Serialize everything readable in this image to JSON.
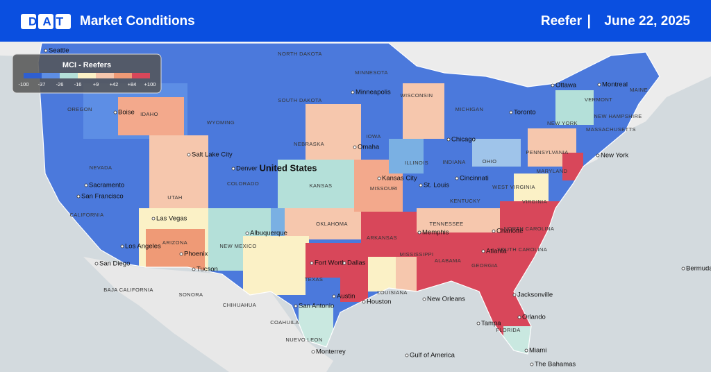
{
  "header": {
    "logo": "DAT",
    "title": "Market Conditions",
    "equipment": "Reefer",
    "date": "June 22, 2025"
  },
  "legend": {
    "title": "MCI - Reefers",
    "labels": [
      "-100",
      "-37",
      "-26",
      "-16",
      "+9",
      "+42",
      "+84",
      "+100"
    ]
  },
  "places": [
    "Seattle",
    "OREGON",
    "IDAHO",
    "Boise",
    "NORTH DAKOTA",
    "MINNESOTA",
    "Minneapolis",
    "WISCONSIN",
    "MICHIGAN",
    "SOUTH DAKOTA",
    "WYOMING",
    "NEBRASKA",
    "Omaha",
    "IOWA",
    "Chicago",
    "NEVADA",
    "Salt Lake City",
    "Denver",
    "United States",
    "UTAH",
    "COLORADO",
    "KANSAS",
    "Kansas City",
    "MISSOURI",
    "St. Louis",
    "ILLINOIS",
    "INDIANA",
    "OHIO",
    "Cincinnati",
    "Sacramento",
    "San Francisco",
    "CALIFORNIA",
    "Las Vegas",
    "Albuquerque",
    "OKLAHOMA",
    "ARKANSAS",
    "TENNESSEE",
    "Memphis",
    "Charlotte",
    "NORTH CAROLINA",
    "Atlanta",
    "SOUTH CAROLINA",
    "Los Angeles",
    "ARIZONA",
    "NEW MEXICO",
    "Phoenix",
    "San Diego",
    "Tucson",
    "Fort Worth",
    "Dallas",
    "MISSISSIPPI",
    "ALABAMA",
    "GEORGIA",
    "TEXAS",
    "Austin",
    "Houston",
    "LOUISIANA",
    "New Orleans",
    "Jacksonville",
    "San Antonio",
    "Orlando",
    "Tampa",
    "FLORIDA",
    "Miami",
    "Monterrey",
    "Toronto",
    "Ottawa",
    "Montreal",
    "New York",
    "PENNSYLVANIA",
    "NEW YORK",
    "MARYLAND",
    "WEST VIRGINIA",
    "VIRGINIA",
    "KENTUCKY",
    "MASSACHUSETTS",
    "VERMONT",
    "NEW HAMPSHIRE",
    "MAINE",
    "Bermuda",
    "Gulf of America",
    "The Bahamas",
    "BAJA CALIFORNIA",
    "SONORA",
    "CHIHUAHUA",
    "COAHUILA",
    "NUEVO LEON"
  ]
}
